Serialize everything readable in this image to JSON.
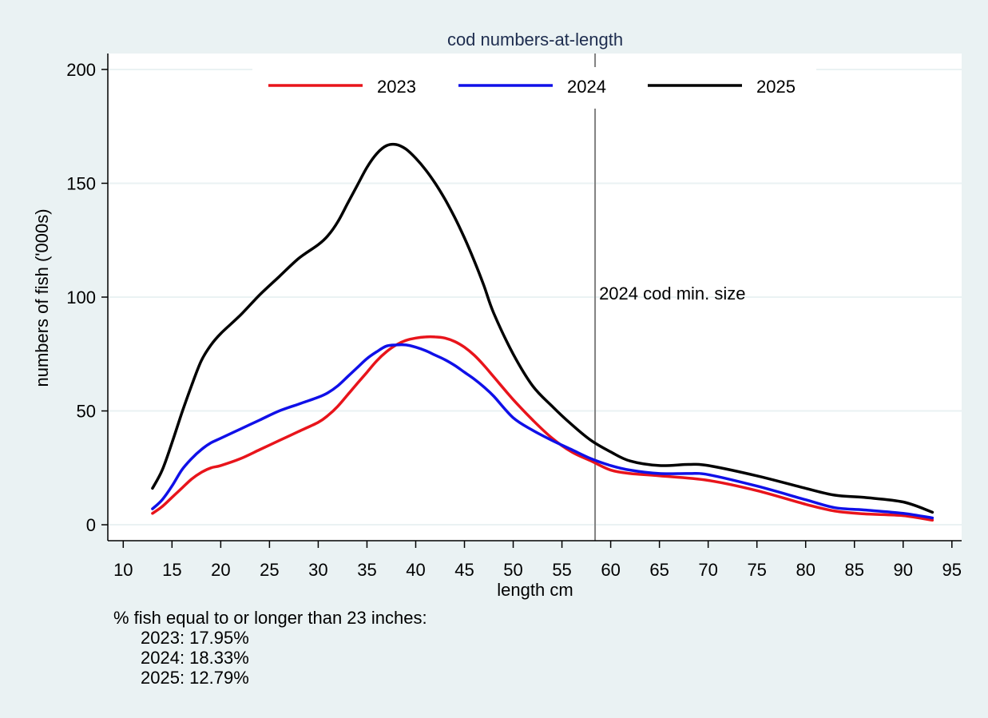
{
  "chart_data": {
    "type": "line",
    "title": "cod numbers-at-length",
    "xlabel": "length cm",
    "ylabel": "numbers of fish ('000s)",
    "xlim": [
      8.5,
      96
    ],
    "ylim": [
      -7,
      207
    ],
    "xticks": [
      10,
      15,
      20,
      25,
      30,
      35,
      40,
      45,
      50,
      55,
      60,
      65,
      70,
      75,
      80,
      85,
      90,
      95
    ],
    "yticks": [
      0,
      50,
      100,
      150,
      200
    ],
    "grid": true,
    "legend_position": "top",
    "reference_line": {
      "x": 58.4,
      "label": "2024 cod min. size",
      "label_y": 99
    },
    "series": [
      {
        "name": "2023",
        "color": "#e8141b",
        "x": [
          13,
          14,
          15,
          16,
          17,
          18,
          19,
          20,
          22,
          24,
          26,
          28,
          30,
          31,
          32,
          33,
          34,
          35,
          36,
          37,
          38,
          39,
          40,
          41,
          42,
          43,
          44,
          45,
          46,
          47,
          48,
          50,
          52,
          54,
          56,
          58,
          60,
          62,
          65,
          70,
          75,
          80,
          83,
          86,
          90,
          93
        ],
        "y": [
          5,
          8,
          12,
          16,
          20,
          23,
          25,
          26,
          29,
          33,
          37,
          41,
          45,
          48,
          52,
          57,
          62,
          67,
          72,
          76,
          79,
          81,
          82,
          82.5,
          82.5,
          82,
          80.5,
          78,
          74.5,
          70,
          65,
          55,
          46,
          38,
          32,
          28,
          24,
          22.5,
          21.5,
          19.5,
          15,
          9,
          6,
          4.8,
          4,
          2
        ]
      },
      {
        "name": "2024",
        "color": "#1010e8",
        "x": [
          13,
          14,
          15,
          16,
          17,
          18,
          19,
          20,
          22,
          24,
          26,
          28,
          30,
          31,
          32,
          33,
          34,
          35,
          36,
          37,
          38,
          39,
          40,
          41,
          42,
          43,
          44,
          45,
          46,
          47,
          48,
          50,
          52,
          54,
          56,
          58,
          60,
          62,
          65,
          68,
          70,
          75,
          80,
          83,
          86,
          90,
          93
        ],
        "y": [
          7,
          11,
          17,
          24,
          29,
          33,
          36,
          38,
          42,
          46,
          50,
          53,
          56,
          58,
          61,
          65,
          69,
          73,
          76,
          78.5,
          79,
          79,
          78,
          76.5,
          74.5,
          72.5,
          70,
          67,
          64,
          60.5,
          56.5,
          47,
          41.5,
          37,
          33,
          29,
          26,
          24,
          22.5,
          22.5,
          22,
          17,
          11,
          7.5,
          6.5,
          5,
          3
        ]
      },
      {
        "name": "2025",
        "color": "#000000",
        "x": [
          13,
          14,
          15,
          16,
          17,
          18,
          19,
          20,
          22,
          24,
          26,
          28,
          30,
          31,
          32,
          33,
          34,
          35,
          36,
          37,
          38,
          39,
          40,
          41,
          42,
          43,
          44,
          45,
          46,
          47,
          48,
          50,
          52,
          54,
          56,
          58,
          60,
          62,
          65,
          68,
          70,
          75,
          80,
          83,
          86,
          90,
          93
        ],
        "y": [
          16,
          24,
          36,
          49,
          61,
          72,
          79,
          84,
          92,
          101,
          109,
          117,
          123,
          127,
          133,
          141,
          149,
          157,
          163,
          166.5,
          167,
          165,
          161,
          156,
          150,
          143,
          135,
          126,
          116,
          105,
          93,
          75,
          61,
          52,
          44,
          37,
          32,
          28,
          26,
          26.5,
          26,
          21.5,
          16,
          13,
          12,
          10,
          5.5
        ]
      }
    ]
  },
  "notes": {
    "heading": "% fish equal to or longer than 23 inches:",
    "lines": [
      "2023: 17.95%",
      "2024: 18.33%",
      "2025: 12.79%"
    ]
  },
  "colors": {
    "background": "#eaf2f3",
    "plot_background": "#ffffff",
    "grid": "#eaf2f3",
    "reference_line": "#808080",
    "title_text": "#1e2d4f"
  }
}
